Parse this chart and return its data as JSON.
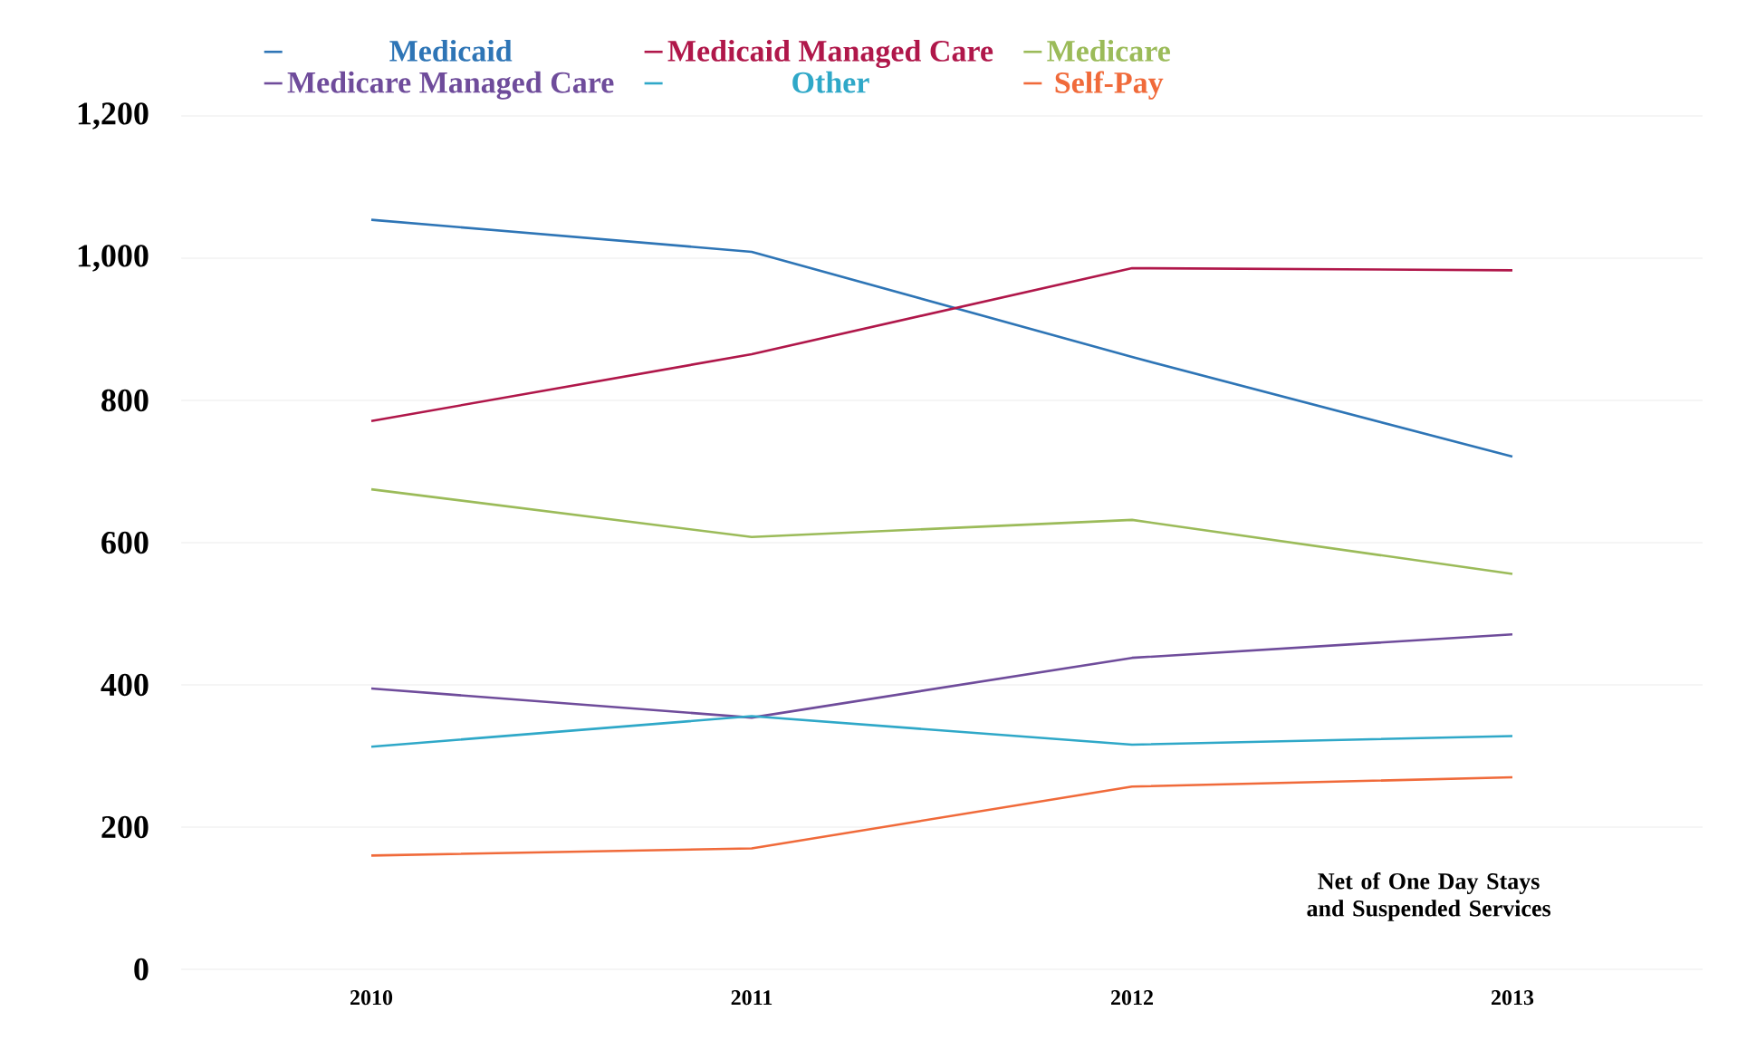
{
  "chart_data": {
    "type": "line",
    "categories": [
      "2010",
      "2011",
      "2012",
      "2013"
    ],
    "series": [
      {
        "name": "Medicaid",
        "color": "#2e75b6",
        "values": [
          1054,
          1009,
          861,
          721
        ]
      },
      {
        "name": "Medicaid Managed Care",
        "color": "#b0174a",
        "values": [
          771,
          865,
          986,
          983
        ]
      },
      {
        "name": "Medicare",
        "color": "#9bbb59",
        "values": [
          675,
          608,
          632,
          556
        ]
      },
      {
        "name": "Medicare Managed Care",
        "color": "#6f4c9b",
        "values": [
          395,
          354,
          438,
          471
        ]
      },
      {
        "name": "Other",
        "color": "#2fa8c8",
        "values": [
          313,
          356,
          316,
          328
        ]
      },
      {
        "name": "Self-Pay",
        "color": "#f06a3a",
        "values": [
          160,
          170,
          257,
          270
        ]
      }
    ],
    "ylim": [
      0,
      1200
    ],
    "yticks": [
      0,
      200,
      400,
      600,
      800,
      {
        "value": 1000,
        "label": "1,000"
      },
      {
        "value": 1200,
        "label": "1,200"
      }
    ],
    "grid": "y",
    "legend": "top",
    "marker": "none",
    "line_style": "solid",
    "annotations": [
      "Net of One Day Stays and Suspended Services"
    ]
  }
}
